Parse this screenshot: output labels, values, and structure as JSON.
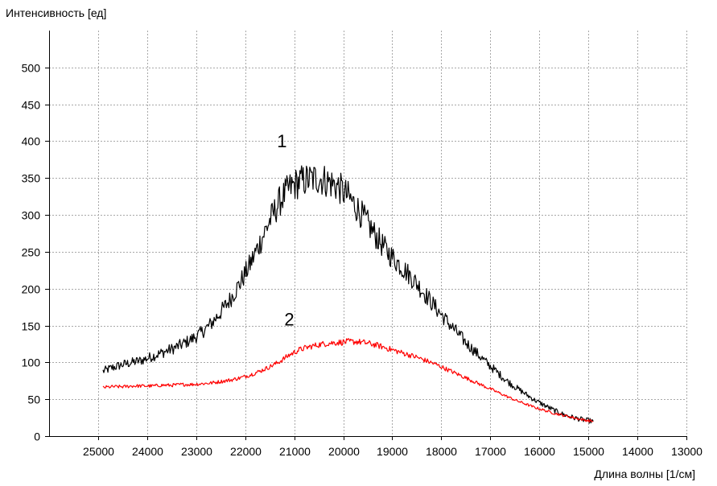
{
  "chart_data": {
    "type": "line",
    "ylabel": "Интенсивность [ед]",
    "xlabel": "Длина волны [1/см]",
    "xlim": [
      26000,
      13000
    ],
    "ylim": [
      0,
      550
    ],
    "x_reversed": true,
    "grid": true,
    "xticks": [
      25000,
      24000,
      23000,
      22000,
      21000,
      20000,
      19000,
      18000,
      17000,
      16000,
      15000,
      14000,
      13000
    ],
    "yticks": [
      0,
      50,
      100,
      150,
      200,
      250,
      300,
      350,
      400,
      450,
      500
    ],
    "annotations": [
      {
        "text": "1",
        "x": 21250,
        "y": 392
      },
      {
        "text": "2",
        "x": 21100,
        "y": 150
      }
    ],
    "series": [
      {
        "color": "#000000",
        "x": [
          24900,
          24700,
          24500,
          24300,
          24100,
          23900,
          23700,
          23500,
          23300,
          23100,
          22900,
          22700,
          22500,
          22300,
          22100,
          21900,
          21700,
          21500,
          21300,
          21100,
          20900,
          20700,
          20500,
          20300,
          20100,
          19900,
          19700,
          19500,
          19300,
          19100,
          18900,
          18700,
          18500,
          18300,
          18100,
          17900,
          17700,
          17500,
          17300,
          17100,
          16900,
          16700,
          16500,
          16300,
          16100,
          15900,
          15700,
          15500,
          15300,
          15100,
          14900
        ],
        "y": [
          88,
          93,
          97,
          100,
          103,
          108,
          113,
          118,
          124,
          131,
          140,
          152,
          168,
          186,
          208,
          233,
          262,
          292,
          318,
          336,
          345,
          348,
          350,
          345,
          338,
          325,
          308,
          288,
          268,
          250,
          236,
          222,
          207,
          190,
          173,
          157,
          142,
          127,
          114,
          101,
          89,
          77,
          67,
          58,
          49,
          42,
          35,
          29,
          25,
          22,
          20
        ],
        "noise": 10
      },
      {
        "color": "#ff0000",
        "x": [
          24900,
          24700,
          24500,
          24300,
          24100,
          23900,
          23700,
          23500,
          23300,
          23100,
          22900,
          22700,
          22500,
          22300,
          22100,
          21900,
          21700,
          21500,
          21300,
          21100,
          20900,
          20700,
          20500,
          20300,
          20100,
          19900,
          19700,
          19500,
          19300,
          19100,
          18900,
          18700,
          18500,
          18300,
          18100,
          17900,
          17700,
          17500,
          17300,
          17100,
          16900,
          16700,
          16500,
          16300,
          16100,
          15900,
          15700,
          15500,
          15300,
          15100,
          14900
        ],
        "y": [
          66,
          67,
          67,
          68,
          68,
          68,
          69,
          69,
          70,
          70,
          71,
          72,
          74,
          76,
          79,
          83,
          88,
          94,
          101,
          110,
          117,
          121,
          124,
          126,
          127,
          128,
          128,
          126,
          123,
          119,
          115,
          111,
          107,
          102,
          97,
          91,
          85,
          79,
          73,
          67,
          61,
          55,
          49,
          44,
          39,
          35,
          31,
          28,
          25,
          22,
          20
        ],
        "noise": 5
      }
    ]
  }
}
